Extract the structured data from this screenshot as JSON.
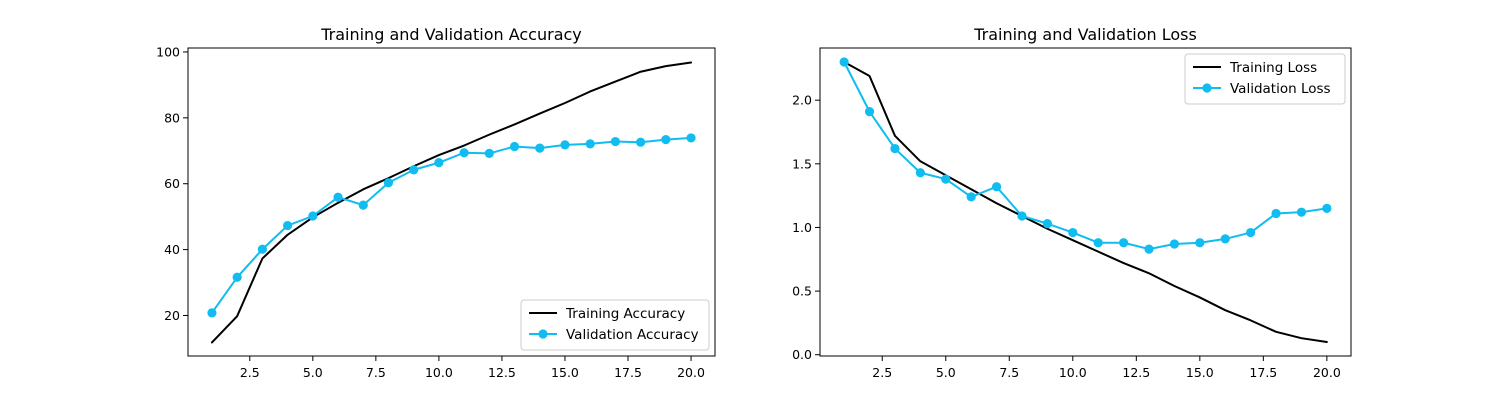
{
  "chart_data": [
    {
      "type": "line",
      "title": "Training and Validation Accuracy",
      "xlabel": "",
      "ylabel": "",
      "xlim": [
        0.05,
        20.95
      ],
      "ylim": [
        7.7,
        101.2
      ],
      "xticks": [
        2.5,
        5.0,
        7.5,
        10.0,
        12.5,
        15.0,
        17.5,
        20.0
      ],
      "xtick_labels": [
        "2.5",
        "5.0",
        "7.5",
        "10.0",
        "12.5",
        "15.0",
        "17.5",
        "20.0"
      ],
      "yticks": [
        20,
        40,
        60,
        80,
        100
      ],
      "ytick_labels": [
        "20",
        "40",
        "60",
        "80",
        "100"
      ],
      "grid": false,
      "legend": "bottom-right",
      "x": [
        1,
        2,
        3,
        4,
        5,
        6,
        7,
        8,
        9,
        10,
        11,
        12,
        13,
        14,
        15,
        16,
        17,
        18,
        19,
        20
      ],
      "series": [
        {
          "name": "Training Accuracy",
          "color": "#000000",
          "marker": "none",
          "values": [
            11.8,
            19.8,
            37.3,
            44.5,
            49.8,
            54.2,
            58.3,
            61.7,
            65.3,
            68.7,
            71.6,
            74.9,
            78.0,
            81.3,
            84.5,
            88.0,
            91.0,
            94.0,
            95.7,
            96.8
          ]
        },
        {
          "name": "Validation Accuracy",
          "color": "#10bcf0",
          "marker": "circle",
          "values": [
            20.8,
            31.6,
            40.1,
            47.3,
            50.2,
            55.9,
            53.5,
            60.3,
            64.2,
            66.4,
            69.4,
            69.2,
            71.3,
            70.8,
            71.8,
            72.1,
            72.8,
            72.6,
            73.4,
            73.9
          ]
        }
      ]
    },
    {
      "type": "line",
      "title": "Training and Validation Loss",
      "xlabel": "",
      "ylabel": "",
      "xlim": [
        0.05,
        20.95
      ],
      "ylim": [
        -0.01,
        2.41
      ],
      "xticks": [
        2.5,
        5.0,
        7.5,
        10.0,
        12.5,
        15.0,
        17.5,
        20.0
      ],
      "xtick_labels": [
        "2.5",
        "5.0",
        "7.5",
        "10.0",
        "12.5",
        "15.0",
        "17.5",
        "20.0"
      ],
      "yticks": [
        0.0,
        0.5,
        1.0,
        1.5,
        2.0
      ],
      "ytick_labels": [
        "0.0",
        "0.5",
        "1.0",
        "1.5",
        "2.0"
      ],
      "grid": false,
      "legend": "top-right",
      "x": [
        1,
        2,
        3,
        4,
        5,
        6,
        7,
        8,
        9,
        10,
        11,
        12,
        13,
        14,
        15,
        16,
        17,
        18,
        19,
        20
      ],
      "series": [
        {
          "name": "Training Loss",
          "color": "#000000",
          "marker": "none",
          "values": [
            2.3,
            2.19,
            1.72,
            1.52,
            1.41,
            1.3,
            1.19,
            1.09,
            0.99,
            0.9,
            0.81,
            0.72,
            0.64,
            0.54,
            0.45,
            0.35,
            0.27,
            0.18,
            0.13,
            0.1
          ]
        },
        {
          "name": "Validation Loss",
          "color": "#10bcf0",
          "marker": "circle",
          "values": [
            2.3,
            1.91,
            1.62,
            1.43,
            1.38,
            1.24,
            1.32,
            1.09,
            1.03,
            0.96,
            0.88,
            0.88,
            0.83,
            0.87,
            0.88,
            0.91,
            0.96,
            1.11,
            1.12,
            1.15
          ]
        }
      ]
    }
  ]
}
